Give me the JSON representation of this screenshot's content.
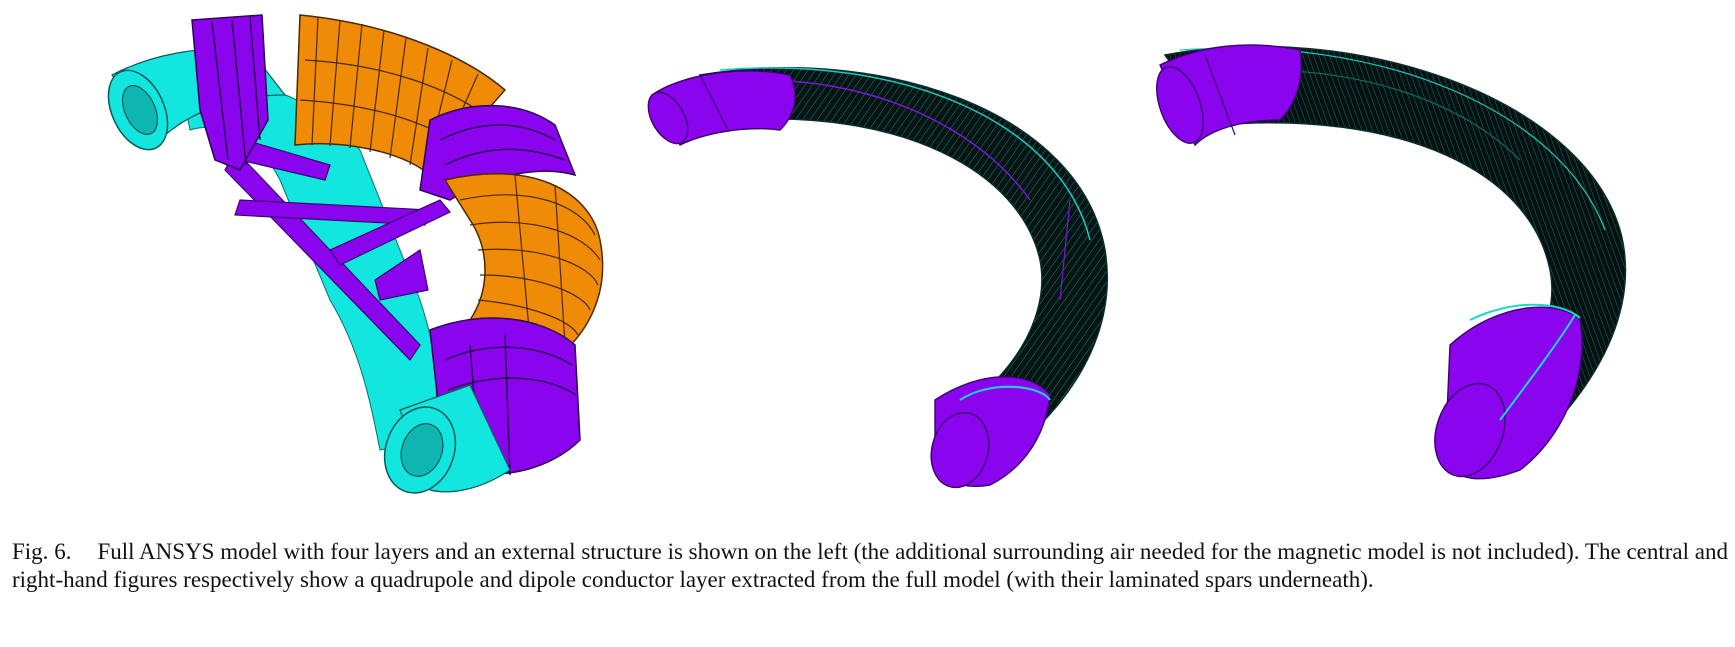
{
  "figure": {
    "label": "Fig. 6.",
    "caption": "Full ANSYS model with four layers and an external structure is shown on the left (the additional surrounding air needed for the magnetic model is not included). The central and right-hand figures respectively show a quadrupole and dipole conductor layer extracted from the full model (with their laminated spars underneath).",
    "colors": {
      "cyan": "#13e5df",
      "purple": "#8a05ee",
      "orange": "#f08b08",
      "mesh": "#0a2e2c",
      "background": "#ffffff"
    },
    "panels": [
      {
        "name": "full-ansys-model"
      },
      {
        "name": "quadrupole-conductor-layer"
      },
      {
        "name": "dipole-conductor-layer"
      }
    ]
  }
}
